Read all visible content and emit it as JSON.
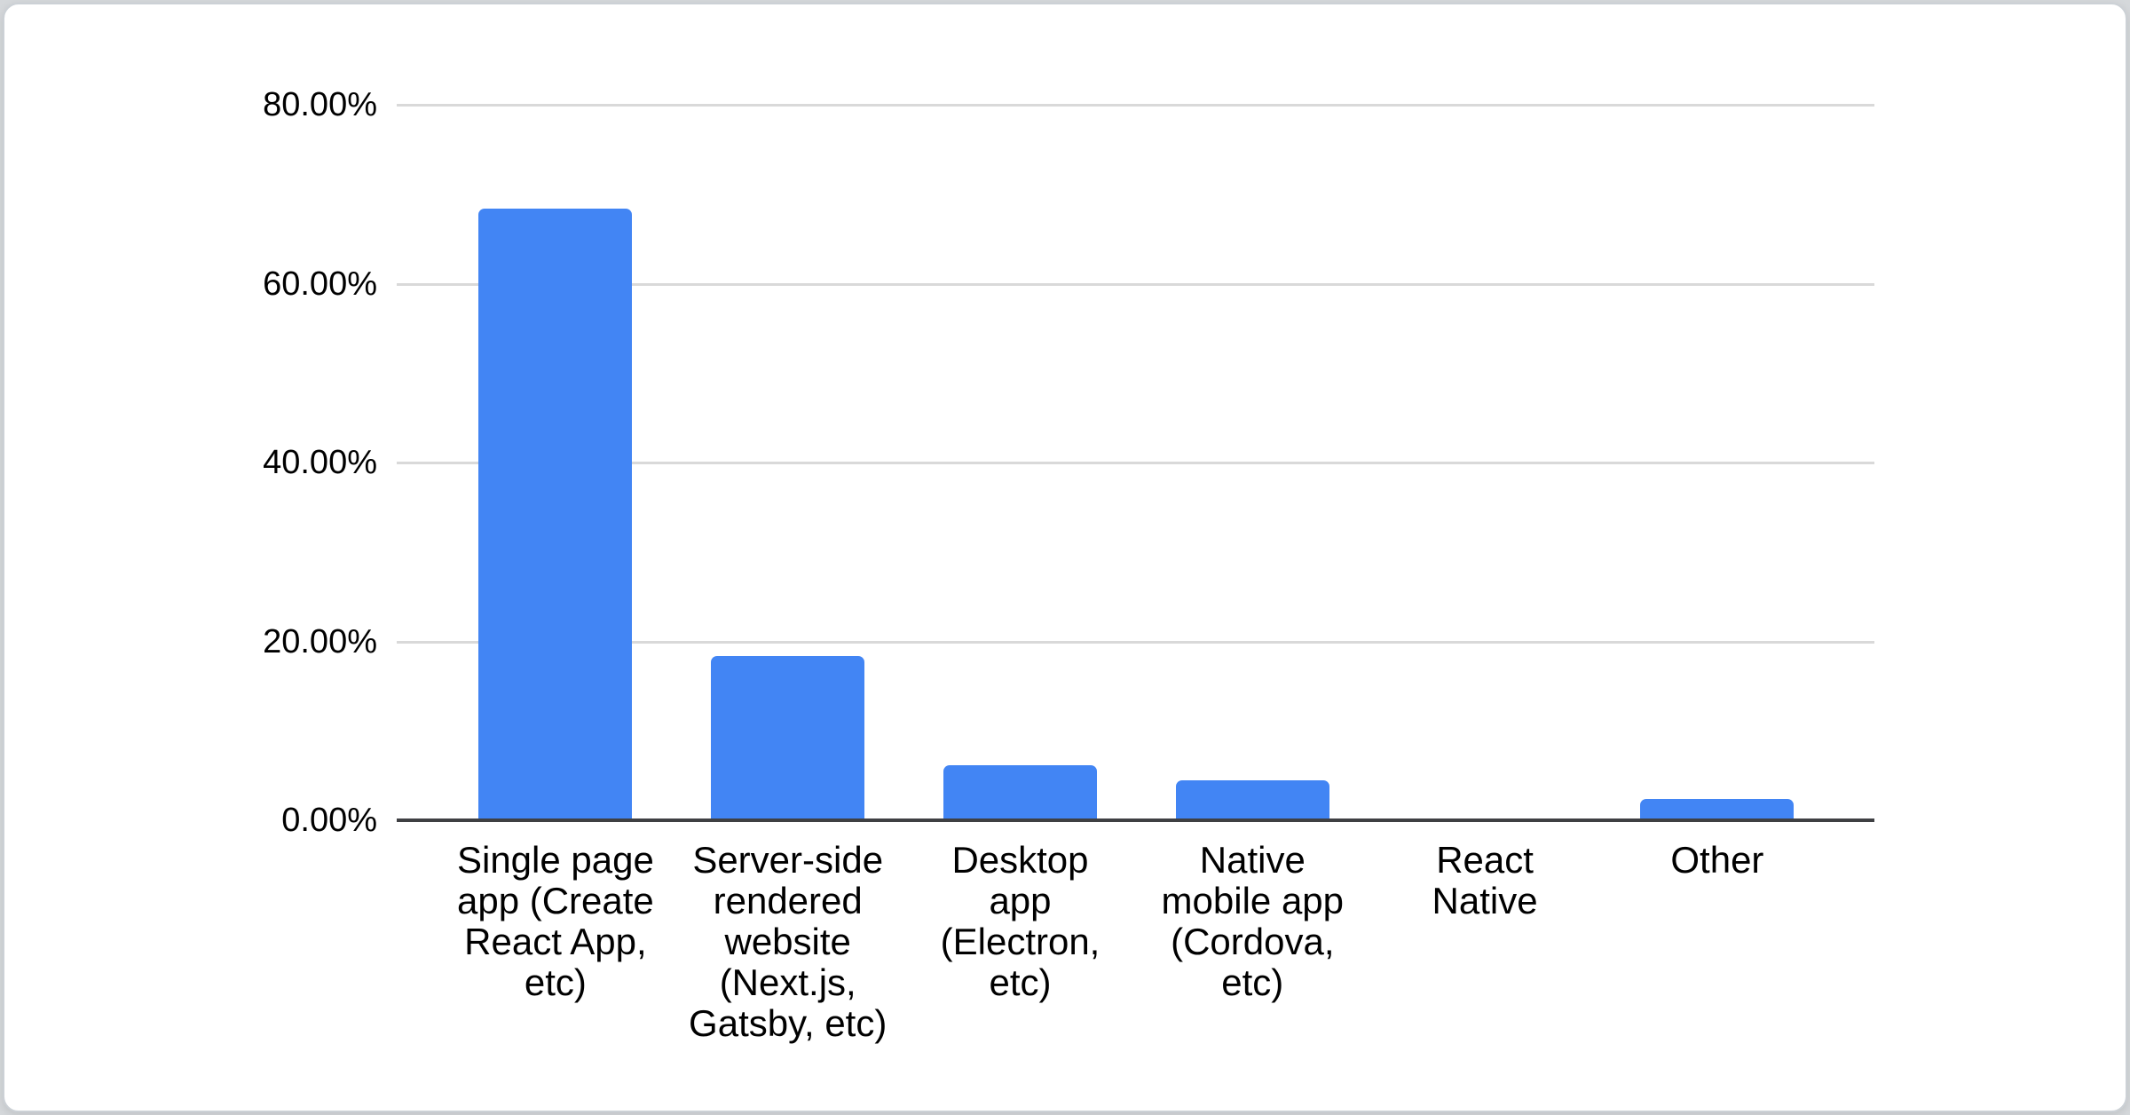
{
  "page": {
    "background_color": "#d5d8db",
    "card_background_color": "#ffffff",
    "card_border_color": "#ccd1d6"
  },
  "chart_data": {
    "type": "bar",
    "title": "",
    "xlabel": "",
    "ylabel": "",
    "categories": [
      "Single page app (Create React App, etc)",
      "Server-side rendered website (Next.js, Gatsby, etc)",
      "Desktop app (Electron, etc)",
      "Native mobile app (Cordova, etc)",
      "React Native",
      "Other"
    ],
    "category_display_lines": [
      [
        "Single page",
        "app (Create",
        "React App,",
        "etc)"
      ],
      [
        "Server-side",
        "rendered",
        "website",
        "(Next.js,",
        "Gatsby, etc)"
      ],
      [
        "Desktop",
        "app",
        "(Electron,",
        "etc)"
      ],
      [
        "Native",
        "mobile app",
        "(Cordova,",
        "etc)"
      ],
      [
        "React",
        "Native"
      ],
      [
        "Other"
      ]
    ],
    "values": [
      68.4,
      18.4,
      6.2,
      4.5,
      0,
      2.4
    ],
    "value_unit": "%",
    "y_axis": {
      "tick_labels": [
        "0.00%",
        "20.00%",
        "40.00%",
        "60.00%",
        "80.00%"
      ],
      "tick_values": [
        0,
        20,
        40,
        60,
        80
      ],
      "min": 0,
      "max": 80
    },
    "legend": "none",
    "grid": true,
    "colors": {
      "bar": "#4285f4",
      "gridline": "#d9d9d9",
      "axis_line": "#3f4043",
      "text": "#000000"
    }
  }
}
